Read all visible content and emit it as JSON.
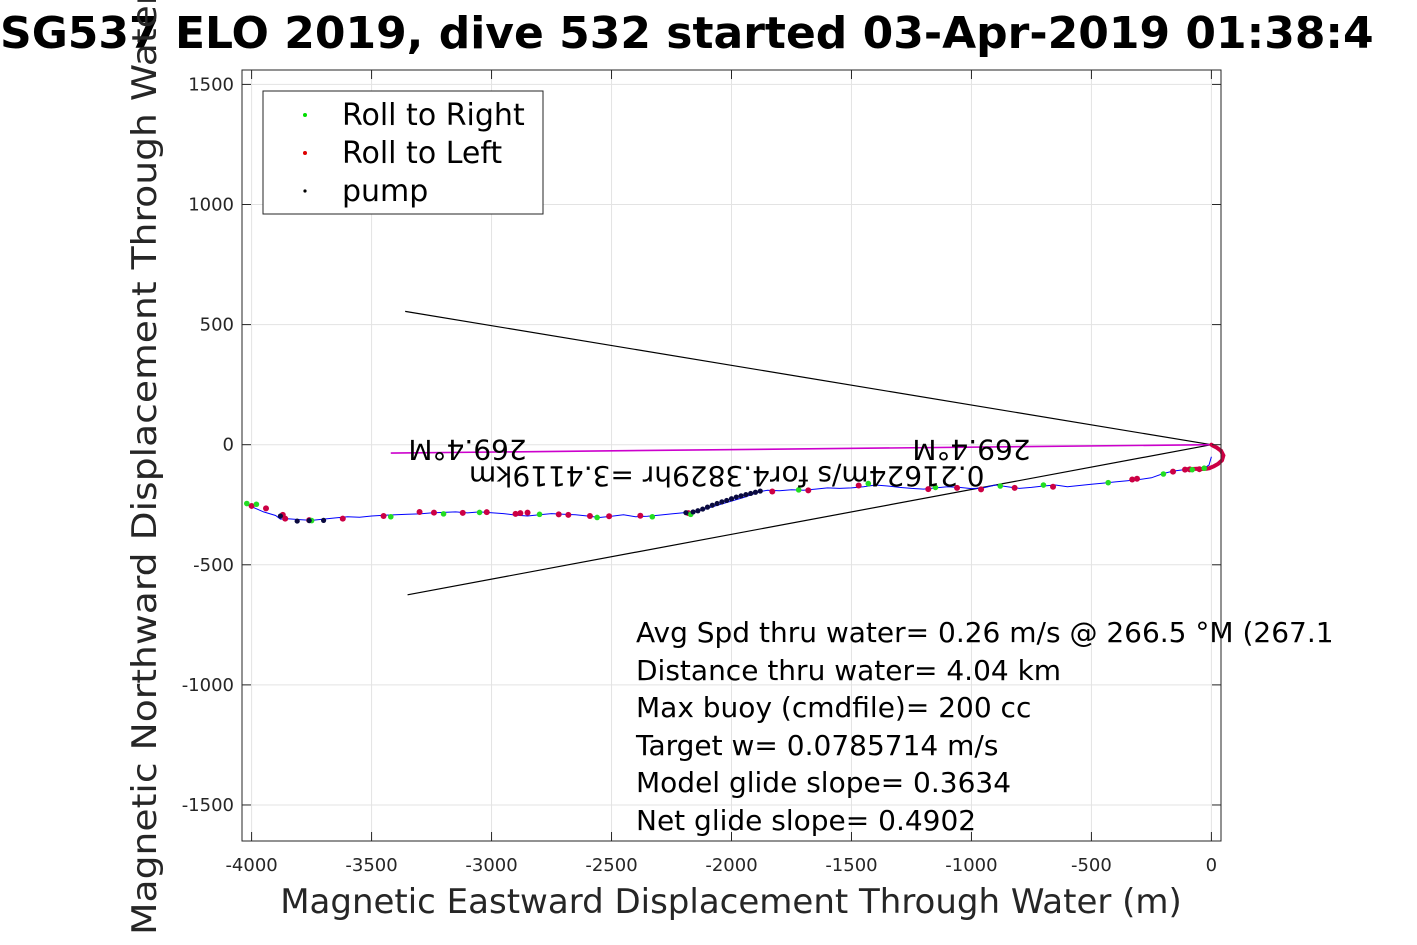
{
  "chart_data": {
    "type": "scatter",
    "title": "SG537 ELO 2019, dive 532 started 03-Apr-2019 01:38:4",
    "xlabel": "Magnetic Eastward Displacement Through Water (m)",
    "ylabel": "Magnetic Northward Displacement Through Water(",
    "xlim": [
      -4040,
      40
    ],
    "ylim": [
      -1650,
      1560
    ],
    "xticks": [
      -4000,
      -3500,
      -3000,
      -2500,
      -2000,
      -1500,
      -1000,
      -500,
      0
    ],
    "yticks": [
      -1500,
      -1000,
      -500,
      0,
      500,
      1000,
      1500
    ],
    "xtick_labels": [
      "-4000",
      "-3500",
      "-3000",
      "-2500",
      "-2000",
      "-1500",
      "-1000",
      "-500",
      "0"
    ],
    "ytick_labels": [
      "-1500",
      "-1000",
      "-500",
      "0",
      "500",
      "1000",
      "1500"
    ],
    "grid": true,
    "legend_position": "top-left",
    "legend": [
      {
        "name": "Roll to Right",
        "color": "#00dd00"
      },
      {
        "name": "Roll to Left",
        "color": "#dd0000"
      },
      {
        "name": "pump",
        "color": "#000000"
      }
    ],
    "track": {
      "color": "#0000ff",
      "x": [
        0,
        -10,
        -30,
        -50,
        -80,
        -120,
        -160,
        -200,
        -250,
        -300,
        -350,
        -400,
        -450,
        -500,
        -550,
        -600,
        -650,
        -700,
        -750,
        -800,
        -850,
        -900,
        -950,
        -1000,
        -1050,
        -1100,
        -1150,
        -1200,
        -1250,
        -1300,
        -1350,
        -1400,
        -1450,
        -1500,
        -1550,
        -1600,
        -1650,
        -1700,
        -1750,
        -1800,
        -1850,
        -1880,
        -1950,
        -2050,
        -2150,
        -2200,
        -2250,
        -2300,
        -2350,
        -2400,
        -2450,
        -2500,
        -2550,
        -2600,
        -2650,
        -2700,
        -2750,
        -2800,
        -2850,
        -2900,
        -2950,
        -3000,
        -3050,
        -3100,
        -3150,
        -3200,
        -3250,
        -3300,
        -3350,
        -3400,
        -3450,
        -3500,
        -3550,
        -3600,
        -3650,
        -3700,
        -3750,
        -3800,
        -3850,
        -3880,
        -3900,
        -3950,
        -4000,
        -4030
      ],
      "y": [
        -50,
        -85,
        -98,
        -100,
        -102,
        -105,
        -110,
        -120,
        -138,
        -145,
        -150,
        -155,
        -160,
        -165,
        -170,
        -175,
        -168,
        -172,
        -178,
        -182,
        -175,
        -168,
        -180,
        -183,
        -178,
        -175,
        -180,
        -185,
        -182,
        -178,
        -172,
        -168,
        -175,
        -180,
        -182,
        -180,
        -185,
        -190,
        -188,
        -192,
        -190,
        -195,
        -220,
        -250,
        -280,
        -283,
        -288,
        -293,
        -298,
        -300,
        -292,
        -298,
        -303,
        -297,
        -292,
        -290,
        -287,
        -292,
        -297,
        -293,
        -287,
        -283,
        -280,
        -284,
        -280,
        -282,
        -284,
        -288,
        -290,
        -292,
        -294,
        -297,
        -302,
        -300,
        -305,
        -310,
        -315,
        -312,
        -308,
        -310,
        -295,
        -280,
        -258,
        -245
      ]
    },
    "loop": {
      "color": "#cc0044",
      "x": [
        0,
        8,
        22,
        40,
        50,
        44,
        28,
        10,
        -2,
        -8,
        -20,
        -40,
        -60,
        -80,
        -100
      ],
      "y": [
        0,
        -5,
        -12,
        -25,
        -45,
        -65,
        -80,
        -90,
        -95,
        -98,
        -100,
        -101,
        -100,
        -101,
        -102
      ]
    },
    "roll_right": {
      "x": [
        -30,
        -80,
        -200,
        -430,
        -700,
        -880,
        -1150,
        -1430,
        -1720,
        -2170,
        -2330,
        -2560,
        -2800,
        -3050,
        -3200,
        -3420,
        -3750,
        -3980,
        -4020
      ],
      "y": [
        -98,
        -104,
        -122,
        -158,
        -168,
        -172,
        -178,
        -162,
        -188,
        -290,
        -300,
        -303,
        -290,
        -282,
        -288,
        -300,
        -316,
        -248,
        -245
      ]
    },
    "roll_left": {
      "x": [
        -50,
        -90,
        -110,
        -160,
        -310,
        -330,
        -660,
        -820,
        -960,
        -1060,
        -1180,
        -1470,
        -1680,
        -1830,
        -2180,
        -2380,
        -2510,
        -2590,
        -2680,
        -2720,
        -2850,
        -2880,
        -2900,
        -3020,
        -3120,
        -3240,
        -3300,
        -3450,
        -3620,
        -3760,
        -3860,
        -3870,
        -3940,
        -4000
      ],
      "y": [
        -102,
        -103,
        -104,
        -112,
        -142,
        -145,
        -175,
        -180,
        -186,
        -180,
        -185,
        -170,
        -190,
        -195,
        -285,
        -296,
        -298,
        -297,
        -292,
        -290,
        -283,
        -285,
        -288,
        -281,
        -284,
        -283,
        -280,
        -297,
        -308,
        -314,
        -308,
        -292,
        -265,
        -255
      ]
    },
    "pump": {
      "x": [
        -1880,
        -1900,
        -1920,
        -1940,
        -1960,
        -1980,
        -2000,
        -2020,
        -2040,
        -2060,
        -2080,
        -2100,
        -2120,
        -2140,
        -2160,
        -2190,
        -3700,
        -3760,
        -3810,
        -3880
      ],
      "y": [
        -193,
        -198,
        -203,
        -208,
        -213,
        -218,
        -225,
        -232,
        -238,
        -245,
        -252,
        -260,
        -268,
        -275,
        -280,
        -283,
        -315,
        -316,
        -318,
        -297
      ]
    },
    "cone_lines": {
      "color": "#000000",
      "segments": [
        {
          "x": [
            0,
            -3360
          ],
          "y": [
            0,
            555
          ]
        },
        {
          "x": [
            0,
            -3350
          ],
          "y": [
            0,
            -625
          ]
        }
      ]
    },
    "heading_line": {
      "color": "#cc00cc",
      "x": [
        0,
        -3420
      ],
      "y": [
        0,
        -35
      ]
    },
    "flipped_labels": [
      {
        "text": "269.4°M",
        "x": -3100,
        "y": 20
      },
      {
        "text": "269.4°M",
        "x": -1000,
        "y": 20
      },
      {
        "text": "0.21624m/s for4.3829hr =3.4119km",
        "x": -2020,
        "y": -90
      }
    ],
    "annotations": [
      "Avg Spd thru water=  0.26 m/s @ 266.5 °M (267.1",
      "Distance thru water=  4.04 km",
      "Max buoy (cmdfile)= 200 cc",
      "Target w= 0.0785714 m/s",
      "Model glide slope= 0.3634",
      "Net glide slope= 0.4902"
    ]
  }
}
